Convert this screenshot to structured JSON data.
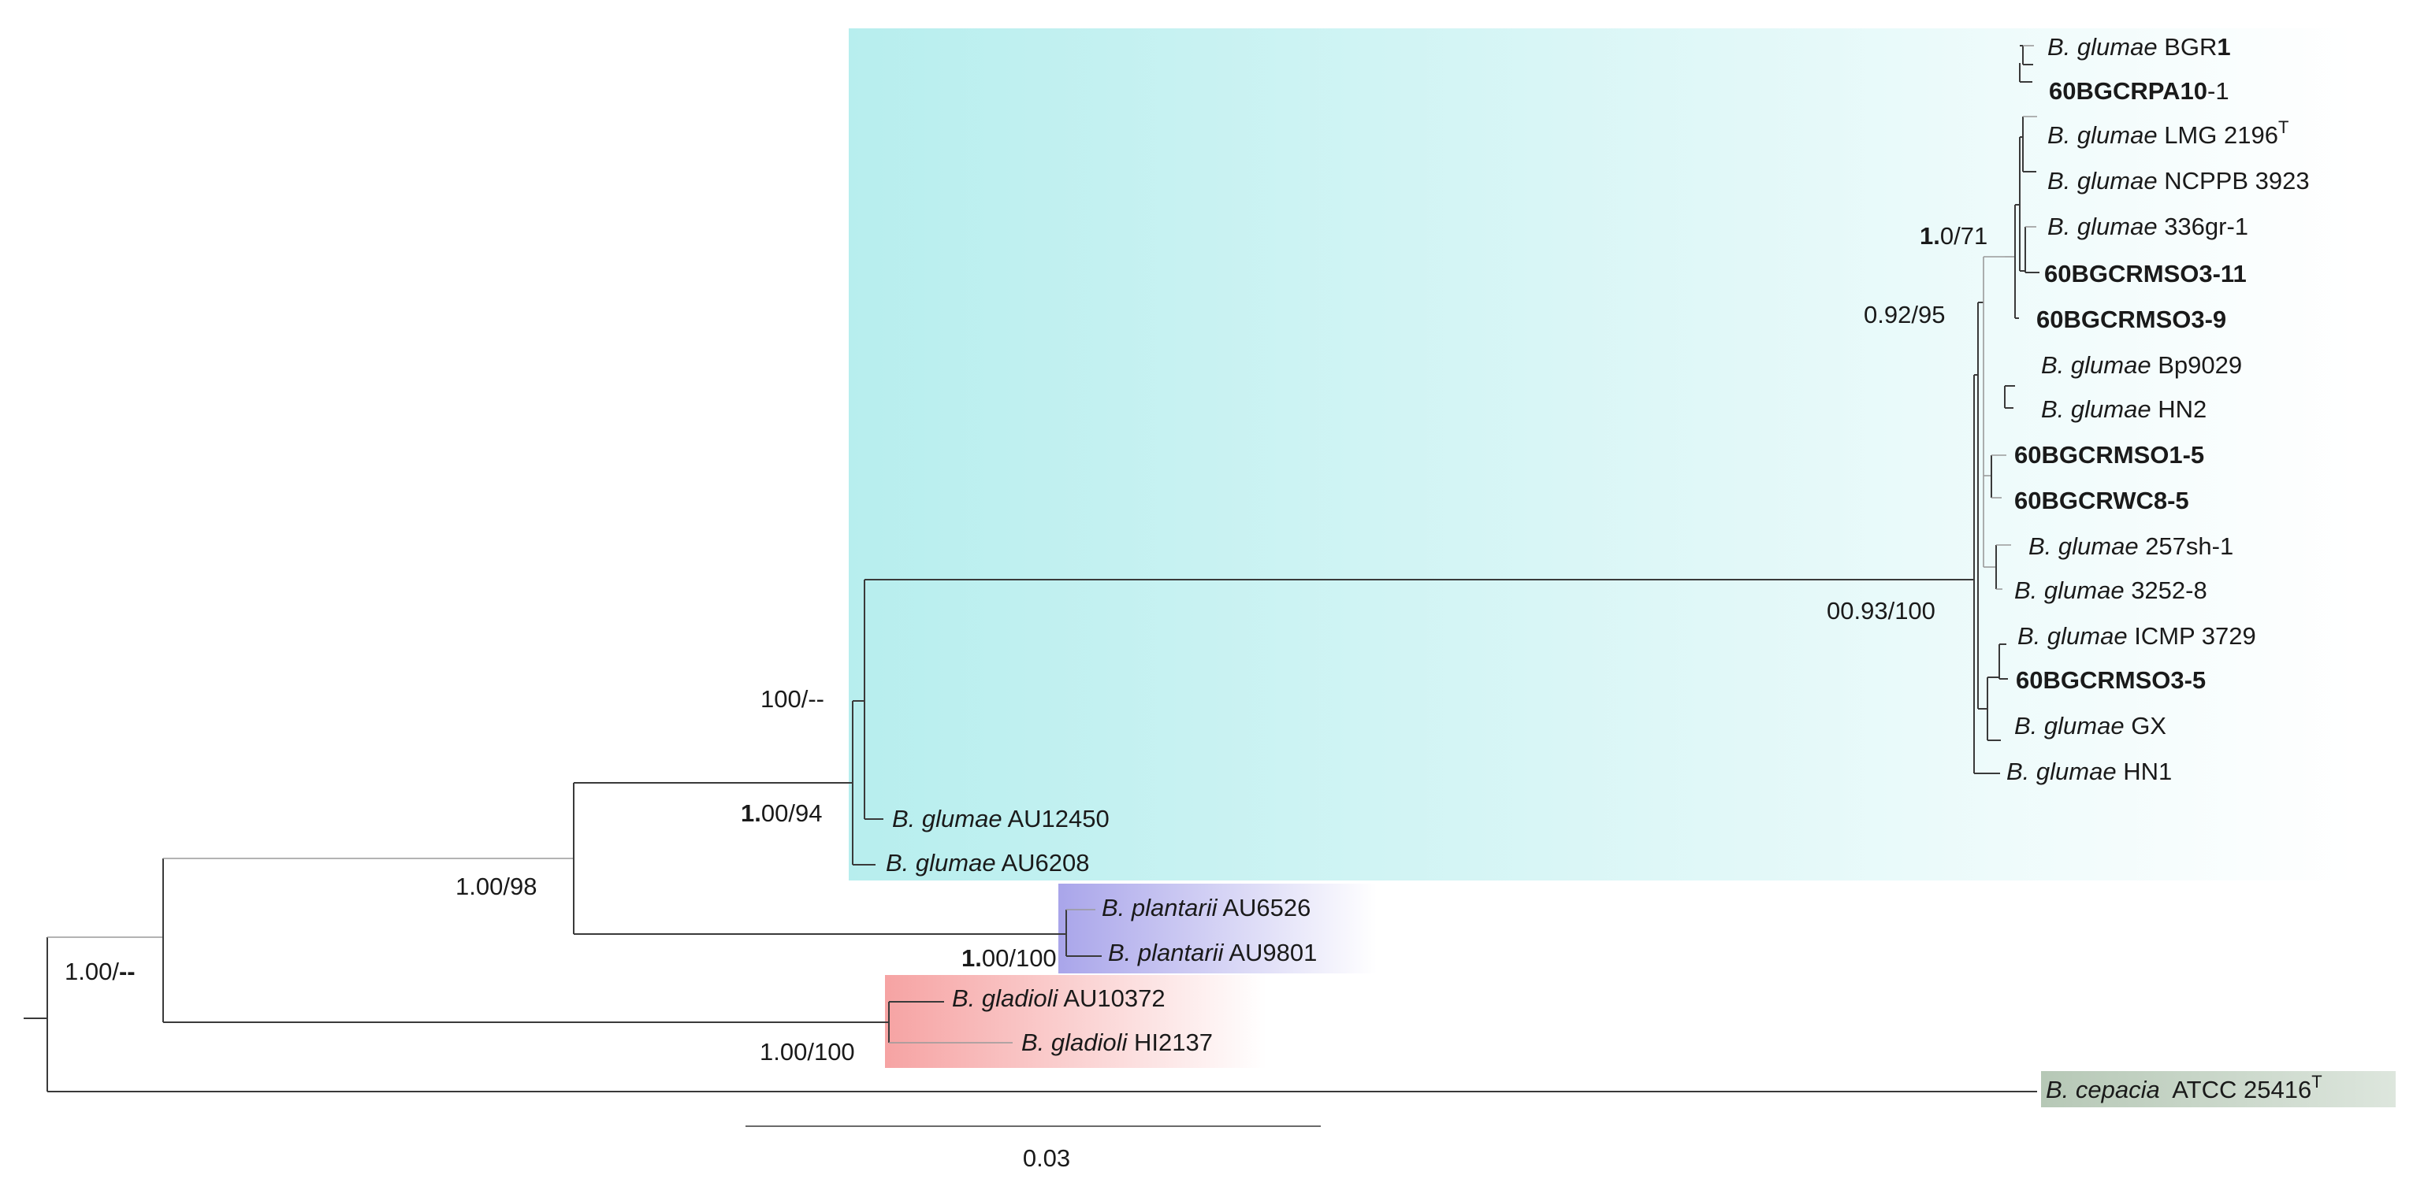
{
  "clades": {
    "glumae": {
      "color": "#b7eeee"
    },
    "plantarii": {
      "color": "#a9a5ea"
    },
    "gladioli": {
      "color": "#f6a3a3"
    },
    "cepacia": {
      "color": "#b6c8b6"
    }
  },
  "leaves": [
    {
      "id": "bgr1",
      "italic": "B. glumae",
      "plain": " BGR",
      "bold": "1"
    },
    {
      "id": "60bgcrpa10-1",
      "bold": "60BGCRPA10",
      "plain": "-1"
    },
    {
      "id": "lmg2196",
      "italic": "B. glumae",
      "plain": " LMG 2196",
      "sup": "T"
    },
    {
      "id": "ncppb3923",
      "italic": "B. glumae",
      "plain": " NCPPB 3923"
    },
    {
      "id": "336gr-1",
      "italic": "B. glumae",
      "plain": " 336gr-1"
    },
    {
      "id": "60bgcrmso3-11",
      "bold": "60BGCRMSO3-11"
    },
    {
      "id": "60bgcrmso3-9",
      "bold": "60BGCRMSO3-9"
    },
    {
      "id": "bp9029",
      "italic": "B. glumae",
      "plain": " Bp9029"
    },
    {
      "id": "hn2",
      "italic": "B. glumae",
      "plain": " HN2"
    },
    {
      "id": "60bgcrmso1-5",
      "bold": "60BGCRMSO1-5"
    },
    {
      "id": "60bgcrwc8-5",
      "bold": "60BGCRWC8-5"
    },
    {
      "id": "257sh-1",
      "italic": "B. glumae",
      "plain": " 257sh-1"
    },
    {
      "id": "3252-8",
      "italic": "B. glumae",
      "plain": " 3252-8"
    },
    {
      "id": "icmp3729",
      "italic": "B. glumae",
      "plain": " ICMP 3729"
    },
    {
      "id": "60bgcrmso3-5",
      "bold": "60BGCRMSO3-5"
    },
    {
      "id": "gx",
      "italic": "B. glumae",
      "plain": " GX"
    },
    {
      "id": "hn1",
      "italic": "B. glumae",
      "plain": " HN1"
    },
    {
      "id": "au12450",
      "italic": "B. glumae",
      "plain": " AU12450"
    },
    {
      "id": "au6208",
      "italic": "B. glumae",
      "plain": " AU6208"
    },
    {
      "id": "au6526",
      "italic": "B. plantarii",
      "plain": " AU6526"
    },
    {
      "id": "au9801",
      "italic": "B. plantarii",
      "plain": " AU9801"
    },
    {
      "id": "au10372",
      "italic": "B. gladioli",
      "plain": " AU10372"
    },
    {
      "id": "hi2137",
      "italic": "B. gladioli",
      "plain": " HI2137"
    },
    {
      "id": "atcc25416",
      "italic": "B. cepacia",
      "plain": "  ATCC 25416",
      "sup": "T"
    }
  ],
  "supports": [
    {
      "id": "1-0-71",
      "bold": "1.",
      "plain": "0/71"
    },
    {
      "id": "0-92-95",
      "plain": "0.92/95"
    },
    {
      "id": "00-93-100",
      "plain": "00.93/100"
    },
    {
      "id": "100-dash",
      "plain": "100/--"
    },
    {
      "id": "1-00-94",
      "bold": "1.",
      "plain": "00/94"
    },
    {
      "id": "1-00-98",
      "plain": "1.00/98"
    },
    {
      "id": "1-00-100-plantarii",
      "bold": "1.",
      "plain": "00/100"
    },
    {
      "id": "1-00-dash",
      "plain": "1.00/",
      "bold_tail": "--"
    },
    {
      "id": "1-00-100-gladioli",
      "plain": "1.00/100"
    }
  ],
  "scale_bar": {
    "label": "0.03"
  }
}
